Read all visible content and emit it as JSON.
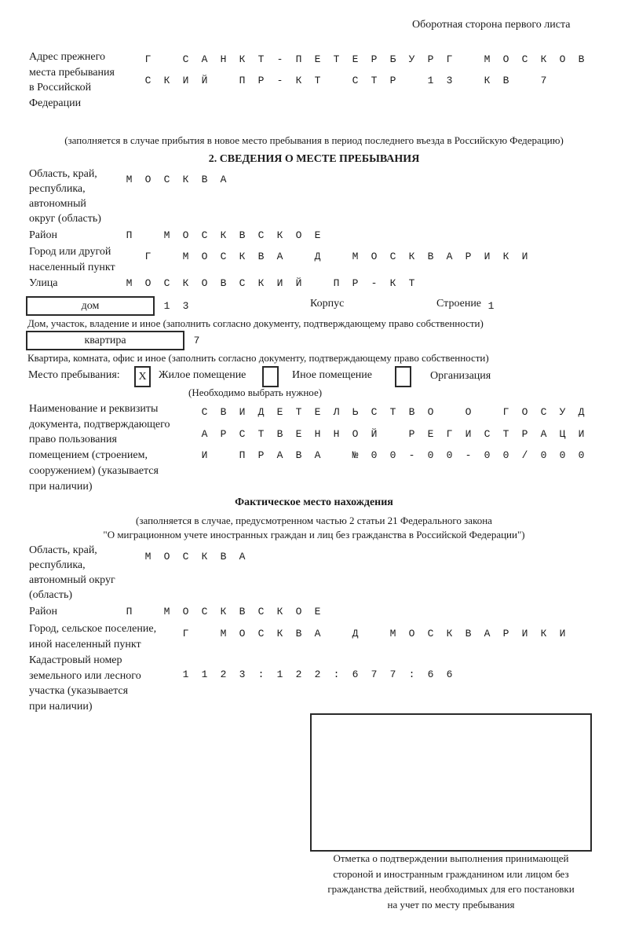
{
  "header": "Оборотная сторона первого листа",
  "prev_address": {
    "label": [
      "Адрес прежнего",
      "места пребывания",
      "в Российской",
      "Федерации"
    ],
    "rows": [
      "Г САНКТ-ПЕТЕРБУРГ МОСКОВ",
      "СКИЙ ПР-КТ СТР 13 КВ 7",
      "",
      ""
    ],
    "note": "(заполняется в случае прибытия в новое место пребывания в период последнего въезда в Российскую Федерацию)"
  },
  "section2": {
    "title": "2. СВЕДЕНИЯ О МЕСТЕ ПРЕБЫВАНИЯ",
    "region_label": [
      "Область, край,",
      "республика,",
      "автономный",
      "округ (область)"
    ],
    "region_rows": [
      "МОСКВА",
      ""
    ],
    "district_label": "Район",
    "district": "П МОСКВСКОЕ",
    "city_label": [
      "Город или другой",
      "населенный пункт"
    ],
    "city": "Г МОСКВА Д МОСКВАРИКИ",
    "street_label": "Улица",
    "street": "МОСКОВСКИЙ ПР-КТ",
    "house_type": "дом",
    "house": "13",
    "korpus_label": "Корпус",
    "korpus": "",
    "building_label": "Строение",
    "building": "1",
    "house_note": "Дом, участок, владение и иное (заполнить согласно документу, подтверждающему право собственности)",
    "apt_type": "квартира",
    "apt": "7",
    "apt_note": "Квартира, комната, офис и иное (заполнить согласно документу, подтверждающему право собственности)",
    "place_label": "Место пребывания:",
    "place_options": [
      {
        "label": "Жилое помещение",
        "mark": "X"
      },
      {
        "label": "Иное помещение",
        "mark": ""
      },
      {
        "label": "Организация",
        "mark": ""
      }
    ],
    "place_note": "(Необходимо выбрать нужное)",
    "doc_label": [
      "Наименование и реквизиты",
      "документа, подтверждающего",
      "право пользования",
      "помещением (строением,",
      "сооружением) (указывается",
      "при наличии)"
    ],
    "doc_rows": [
      "СВИДЕТЕЛЬСТВО О ГОСУД",
      "АРСТВЕННОЙ РЕГИСТРАЦИ",
      "И ПРАВА №00-00-00/000"
    ]
  },
  "actual": {
    "title": "Фактическое место нахождения",
    "note": [
      "(заполняется в случае, предусмотренном частью 2 статьи 21 Федерального закона",
      "\"О миграционном учете иностранных граждан и лиц без гражданства в Российской Федерации\")"
    ],
    "region_label": [
      "Область, край,",
      "республика,",
      "автономный округ",
      "(область)"
    ],
    "region_rows": [
      "МОСКВА",
      ""
    ],
    "district_label": "Район",
    "district": "П МОСКВСКОЕ",
    "city_label": [
      "Город, сельское поселение,",
      "иной населенный пункт"
    ],
    "city": "Г МОСКВА Д МОСКВАРИКИ",
    "cadastre_label": [
      "Кадастровый номер",
      "земельного или лесного",
      "участка (указывается",
      "при наличии)"
    ],
    "cadastre_rows": [
      "1123:122:677:66",
      ""
    ]
  },
  "stamp_caption": [
    "Отметка о подтверждении выполнения принимающей",
    "стороной и иностранным гражданином или лицом без",
    "гражданства действий, необходимых для его постановки",
    "на учет по месту пребывания"
  ]
}
